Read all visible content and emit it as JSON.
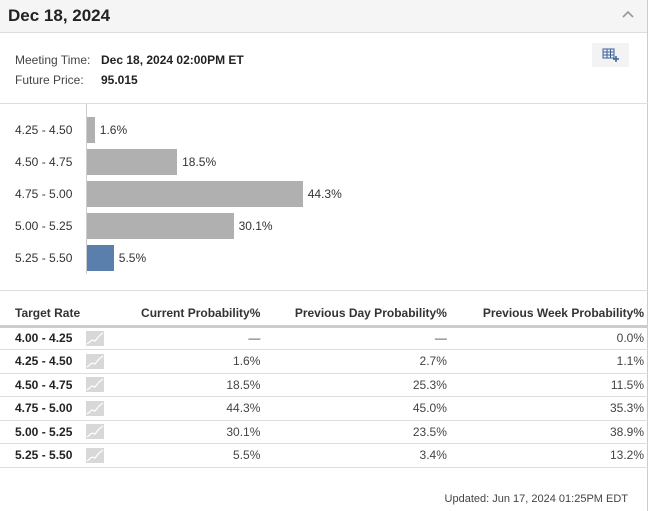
{
  "header": {
    "title": "Dec 18, 2024",
    "collapse_icon": "chevron-up-icon"
  },
  "info": {
    "meeting_time_label": "Meeting Time:",
    "meeting_time": "Dec 18, 2024 02:00PM ET",
    "future_price_label": "Future Price:",
    "future_price": "95.015"
  },
  "colors": {
    "bar": "#b0b0b0",
    "highlight": "#5b7fad"
  },
  "chart_data": {
    "type": "bar",
    "orientation": "horizontal",
    "categories": [
      "4.25 - 4.50",
      "4.50 - 4.75",
      "4.75 - 5.00",
      "5.00 - 5.25",
      "5.25 - 5.50"
    ],
    "values": [
      1.6,
      18.5,
      44.3,
      30.1,
      5.5
    ],
    "labels": [
      "1.6%",
      "18.5%",
      "44.3%",
      "30.1%",
      "5.5%"
    ],
    "highlight_index": 4
  },
  "table": {
    "headers": [
      "Target Rate",
      "Current Probability%",
      "Previous Day Probability%",
      "Previous Week Probability%"
    ],
    "rows": [
      {
        "rate": "4.00 - 4.25",
        "current": "—",
        "prev_day": "—",
        "prev_week": "0.0%"
      },
      {
        "rate": "4.25 - 4.50",
        "current": "1.6%",
        "prev_day": "2.7%",
        "prev_week": "1.1%"
      },
      {
        "rate": "4.50 - 4.75",
        "current": "18.5%",
        "prev_day": "25.3%",
        "prev_week": "11.5%"
      },
      {
        "rate": "4.75 - 5.00",
        "current": "44.3%",
        "prev_day": "45.0%",
        "prev_week": "35.3%"
      },
      {
        "rate": "5.00 - 5.25",
        "current": "30.1%",
        "prev_day": "23.5%",
        "prev_week": "38.9%"
      },
      {
        "rate": "5.25 - 5.50",
        "current": "5.5%",
        "prev_day": "3.4%",
        "prev_week": "13.2%"
      }
    ]
  },
  "footer": {
    "updated": "Updated: Jun 17, 2024 01:25PM EDT"
  }
}
